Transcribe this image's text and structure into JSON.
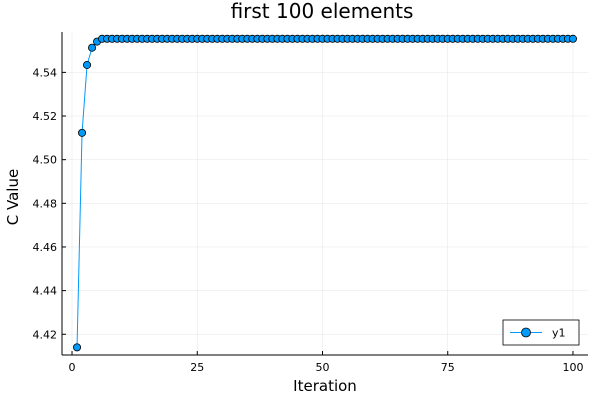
{
  "chart_data": {
    "type": "line",
    "title": "first 100 elements",
    "xlabel": "Iteration",
    "ylabel": "C Value",
    "xlim": [
      -2,
      103
    ],
    "ylim": [
      4.4105,
      4.5585
    ],
    "xticks": [
      0,
      25,
      50,
      75,
      100
    ],
    "xtick_labels": [
      "0",
      "25",
      "50",
      "75",
      "100"
    ],
    "yticks": [
      4.42,
      4.44,
      4.46,
      4.48,
      4.5,
      4.52,
      4.54
    ],
    "ytick_labels": [
      "4.42",
      "4.44",
      "4.46",
      "4.48",
      "4.50",
      "4.52",
      "4.54"
    ],
    "grid": true,
    "legend_position": "bottom-right",
    "series": [
      {
        "name": "y1",
        "color": "#009AFA",
        "marker": "circle",
        "x_start": 1,
        "x_step": 1,
        "count": 100,
        "initial_values": [
          4.414,
          4.5123,
          4.5434,
          4.5513,
          4.5541
        ],
        "plateau_value": 4.5554
      }
    ]
  }
}
